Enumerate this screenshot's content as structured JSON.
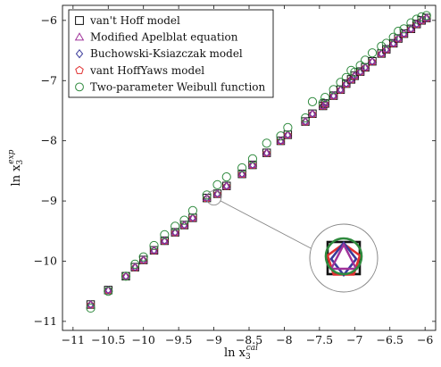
{
  "chart_data": {
    "type": "scatter",
    "xlabel_main": "ln x",
    "xlabel_sub": "3",
    "xlabel_sup": "cal",
    "ylabel_main": "ln x",
    "ylabel_sub": "3",
    "ylabel_sup": "exp",
    "xlim": [
      -11.15,
      -5.85
    ],
    "ylim": [
      -11.15,
      -5.75
    ],
    "x_ticks": [
      -11,
      -10.5,
      -10,
      -9.5,
      -9,
      -8.5,
      -8,
      -7.5,
      -7,
      -6.5,
      -6
    ],
    "x_tick_labels": [
      "−11",
      "−10.5",
      "−10",
      "−9.5",
      "−9",
      "−8.5",
      "−8",
      "−7.5",
      "−7",
      "−6.5",
      "−6"
    ],
    "y_ticks": [
      -11,
      -10,
      -9,
      -8,
      -7,
      -6
    ],
    "y_tick_labels": [
      "−11",
      "−10",
      "−9",
      "−8",
      "−7",
      "−6"
    ],
    "legend_position": "top-left",
    "series": [
      {
        "name": "van't Hoff model",
        "marker": "square",
        "color": "#111111"
      },
      {
        "name": "Modified Apelblat equation",
        "marker": "triangle",
        "color": "#a0329a"
      },
      {
        "name": "Buchowski-Ksiazczak model",
        "marker": "diamond",
        "color": "#3a3a9a"
      },
      {
        "name": "vant HoffYaws model",
        "marker": "pentagon",
        "color": "#e03030"
      },
      {
        "name": "Two-parameter Weibull function",
        "marker": "circle",
        "color": "#2f8a3e"
      }
    ],
    "points_cal": [
      -10.75,
      -10.5,
      -10.25,
      -10.12,
      -10.0,
      -9.85,
      -9.7,
      -9.55,
      -9.42,
      -9.3,
      -9.1,
      -8.95,
      -8.82,
      -8.6,
      -8.45,
      -8.25,
      -8.05,
      -7.95,
      -7.7,
      -7.6,
      -7.45,
      -7.42,
      -7.3,
      -7.2,
      -7.12,
      -7.05,
      -7.0,
      -6.92,
      -6.85,
      -6.75,
      -6.62,
      -6.55,
      -6.45,
      -6.38,
      -6.3,
      -6.2,
      -6.12,
      -6.05,
      -5.98
    ],
    "points_exp": [
      -10.72,
      -10.48,
      -10.25,
      -10.1,
      -9.98,
      -9.82,
      -9.66,
      -9.52,
      -9.4,
      -9.28,
      -8.95,
      -8.88,
      -8.75,
      -8.55,
      -8.4,
      -8.2,
      -8.0,
      -7.9,
      -7.68,
      -7.55,
      -7.42,
      -7.38,
      -7.25,
      -7.15,
      -7.05,
      -6.98,
      -6.92,
      -6.85,
      -6.78,
      -6.68,
      -6.55,
      -6.48,
      -6.38,
      -6.3,
      -6.22,
      -6.14,
      -6.06,
      -6.0,
      -5.96
    ],
    "weibull_offset_exp": [
      -0.06,
      -0.02,
      0.0,
      0.05,
      0.05,
      0.08,
      0.1,
      0.1,
      0.08,
      0.12,
      0.05,
      0.15,
      0.15,
      0.1,
      0.1,
      0.16,
      0.08,
      0.12,
      0.06,
      0.2,
      0.05,
      0.1,
      0.1,
      0.12,
      0.1,
      0.15,
      0.06,
      0.1,
      0.12,
      0.14,
      0.12,
      0.1,
      0.1,
      0.12,
      0.08,
      0.1,
      0.08,
      0.06,
      0.04
    ],
    "zoom_point_cal": -9.0,
    "zoom_point_exp": -8.95
  }
}
